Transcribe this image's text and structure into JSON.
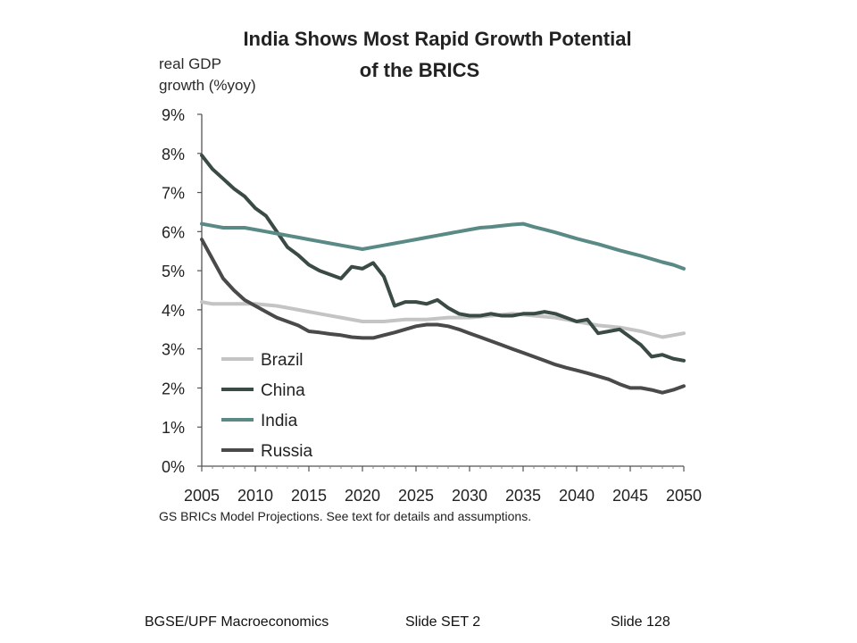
{
  "chart_data": {
    "type": "line",
    "title_line1": "India Shows Most Rapid Growth Potential",
    "title_line2": "of the BRICS",
    "ylabel_line1": "real GDP",
    "ylabel_line2": "growth (%yoy)",
    "xlabel": "",
    "ylim": [
      0,
      9
    ],
    "xlim": [
      2005,
      2050
    ],
    "x_ticks": [
      "2005",
      "2010",
      "2015",
      "2020",
      "2025",
      "2030",
      "2035",
      "2040",
      "2045",
      "2050"
    ],
    "y_ticks": [
      "0%",
      "1%",
      "2%",
      "3%",
      "4%",
      "5%",
      "6%",
      "7%",
      "8%",
      "9%"
    ],
    "grid": false,
    "legend_position": "lower-left",
    "source_note": "GS BRICs Model Projections. See text for details and assumptions.",
    "series": [
      {
        "name": "Brazil",
        "color": "#c4c4c4",
        "x": [
          2005,
          2006,
          2008,
          2010,
          2012,
          2014,
          2016,
          2018,
          2020,
          2022,
          2024,
          2026,
          2028,
          2030,
          2032,
          2034,
          2036,
          2038,
          2040,
          2042,
          2044,
          2046,
          2048,
          2050
        ],
        "values": [
          4.2,
          4.15,
          4.15,
          4.15,
          4.1,
          4.0,
          3.9,
          3.8,
          3.7,
          3.7,
          3.75,
          3.75,
          3.8,
          3.8,
          3.85,
          3.9,
          3.85,
          3.8,
          3.7,
          3.6,
          3.55,
          3.45,
          3.3,
          3.4
        ]
      },
      {
        "name": "China",
        "color": "#3a4a44",
        "x": [
          2005,
          2006,
          2007,
          2008,
          2009,
          2010,
          2011,
          2012,
          2013,
          2014,
          2015,
          2016,
          2017,
          2018,
          2019,
          2020,
          2021,
          2022,
          2023,
          2024,
          2025,
          2026,
          2027,
          2028,
          2029,
          2030,
          2031,
          2032,
          2033,
          2034,
          2035,
          2036,
          2037,
          2038,
          2039,
          2040,
          2041,
          2042,
          2043,
          2044,
          2045,
          2046,
          2047,
          2048,
          2049,
          2050
        ],
        "values": [
          7.95,
          7.6,
          7.35,
          7.1,
          6.9,
          6.6,
          6.4,
          6.0,
          5.6,
          5.4,
          5.15,
          5.0,
          4.9,
          4.8,
          5.1,
          5.05,
          5.2,
          4.85,
          4.1,
          4.2,
          4.2,
          4.15,
          4.25,
          4.05,
          3.9,
          3.85,
          3.85,
          3.9,
          3.85,
          3.85,
          3.9,
          3.9,
          3.95,
          3.9,
          3.8,
          3.7,
          3.75,
          3.4,
          3.45,
          3.5,
          3.3,
          3.1,
          2.8,
          2.85,
          2.75,
          2.7
        ]
      },
      {
        "name": "India",
        "color": "#5a8a86",
        "x": [
          2005,
          2006,
          2007,
          2008,
          2009,
          2010,
          2011,
          2012,
          2013,
          2014,
          2015,
          2016,
          2017,
          2018,
          2019,
          2020,
          2021,
          2022,
          2023,
          2024,
          2025,
          2026,
          2027,
          2028,
          2029,
          2030,
          2031,
          2032,
          2033,
          2034,
          2035,
          2036,
          2037,
          2038,
          2039,
          2040,
          2041,
          2042,
          2043,
          2044,
          2045,
          2046,
          2047,
          2048,
          2049,
          2050
        ],
        "values": [
          6.2,
          6.15,
          6.1,
          6.1,
          6.1,
          6.05,
          6.0,
          5.95,
          5.9,
          5.85,
          5.8,
          5.75,
          5.7,
          5.65,
          5.6,
          5.55,
          5.6,
          5.65,
          5.7,
          5.75,
          5.8,
          5.85,
          5.9,
          5.95,
          6.0,
          6.05,
          6.1,
          6.12,
          6.15,
          6.18,
          6.2,
          6.12,
          6.05,
          5.98,
          5.9,
          5.82,
          5.75,
          5.68,
          5.6,
          5.52,
          5.45,
          5.38,
          5.3,
          5.22,
          5.15,
          5.05
        ]
      },
      {
        "name": "Russia",
        "color": "#4a4a4a",
        "x": [
          2005,
          2006,
          2007,
          2008,
          2009,
          2010,
          2011,
          2012,
          2013,
          2014,
          2015,
          2016,
          2017,
          2018,
          2019,
          2020,
          2021,
          2022,
          2023,
          2024,
          2025,
          2026,
          2027,
          2028,
          2029,
          2030,
          2031,
          2032,
          2033,
          2034,
          2035,
          2036,
          2037,
          2038,
          2039,
          2040,
          2041,
          2042,
          2043,
          2044,
          2045,
          2046,
          2047,
          2048,
          2049,
          2050
        ],
        "values": [
          5.8,
          5.3,
          4.8,
          4.5,
          4.25,
          4.1,
          3.95,
          3.8,
          3.7,
          3.6,
          3.45,
          3.42,
          3.38,
          3.35,
          3.3,
          3.28,
          3.28,
          3.35,
          3.42,
          3.5,
          3.58,
          3.62,
          3.62,
          3.58,
          3.5,
          3.4,
          3.3,
          3.2,
          3.1,
          3.0,
          2.9,
          2.8,
          2.7,
          2.6,
          2.52,
          2.45,
          2.38,
          2.3,
          2.22,
          2.1,
          2.0,
          2.0,
          1.95,
          1.88,
          1.95,
          2.05
        ]
      }
    ]
  },
  "footer": {
    "course": "BGSE/UPF Macroeconomics",
    "set": "Slide SET 2",
    "slide": "Slide 128"
  }
}
